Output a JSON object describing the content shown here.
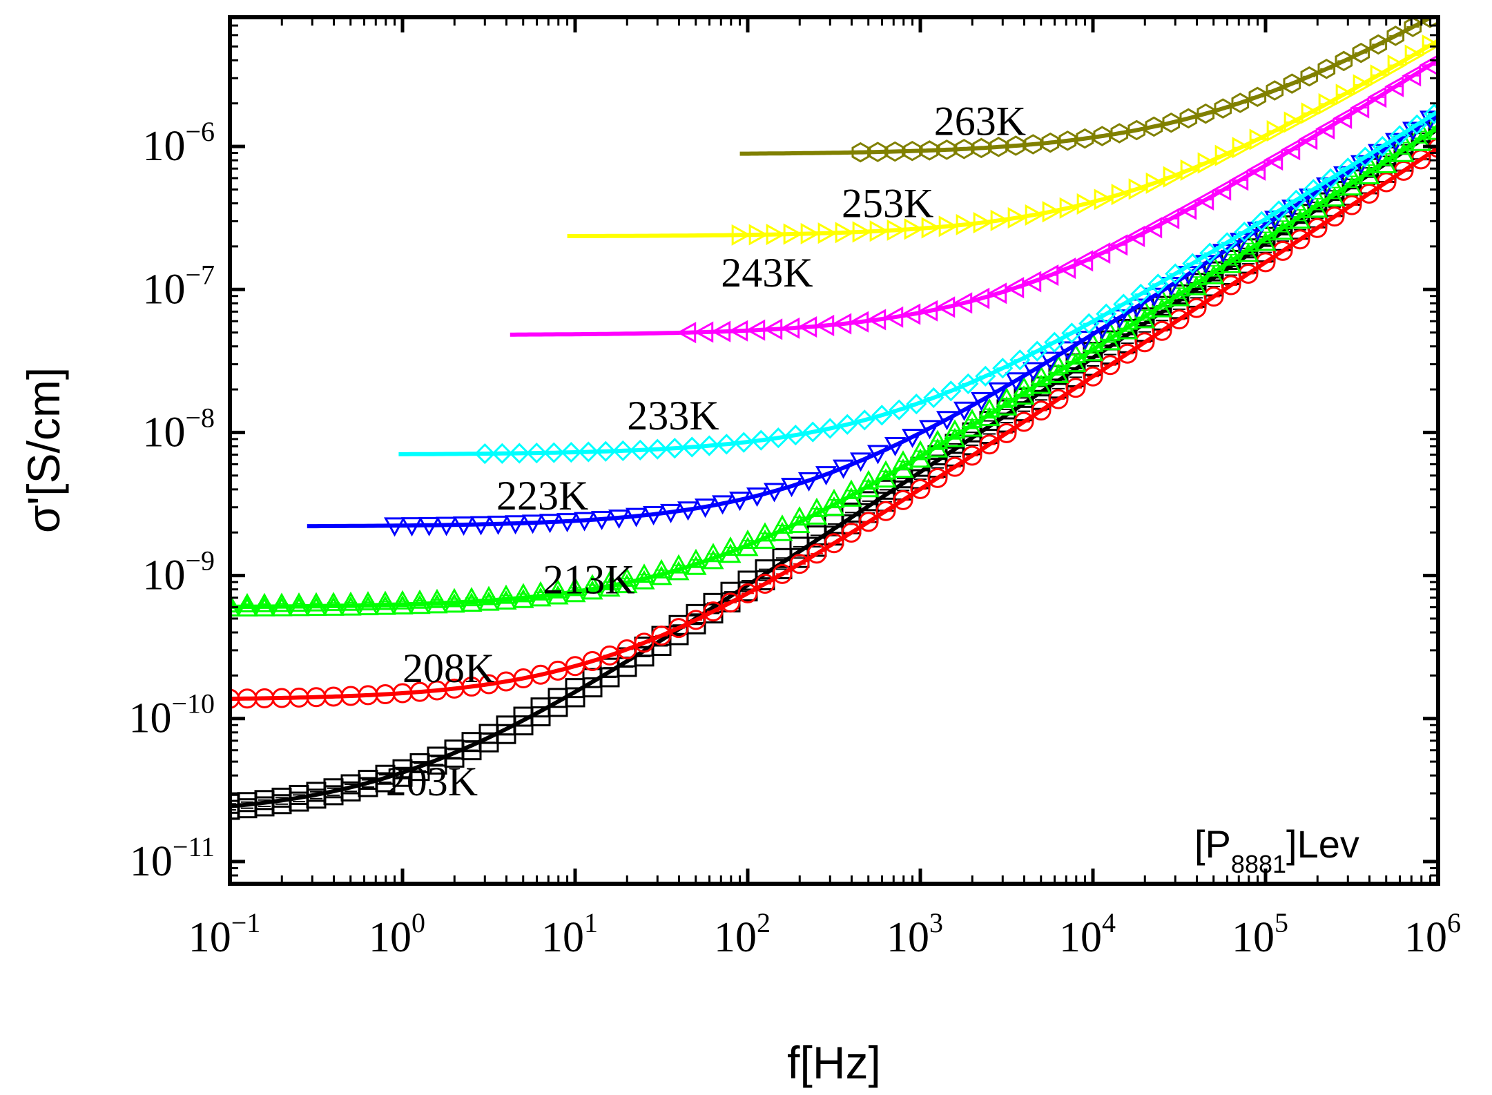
{
  "chart_data": {
    "type": "scatter",
    "title": "",
    "xlabel": "f[Hz]",
    "ylabel": "σ'[S/cm]",
    "xscale": "log",
    "yscale": "log",
    "xlim": [
      0.1,
      1000000
    ],
    "ylim": [
      7e-12,
      8e-06
    ],
    "x_ticks": [
      {
        "value": 0.1,
        "base": "10",
        "exp": "−1"
      },
      {
        "value": 1,
        "base": "10",
        "exp": "0"
      },
      {
        "value": 10,
        "base": "10",
        "exp": "1"
      },
      {
        "value": 100,
        "base": "10",
        "exp": "2"
      },
      {
        "value": 1000,
        "base": "10",
        "exp": "3"
      },
      {
        "value": 10000,
        "base": "10",
        "exp": "4"
      },
      {
        "value": 100000,
        "base": "10",
        "exp": "5"
      },
      {
        "value": 1000000,
        "base": "10",
        "exp": "6"
      }
    ],
    "y_ticks": [
      {
        "value": 1e-11,
        "base": "10",
        "exp": "−11"
      },
      {
        "value": 1e-10,
        "base": "10",
        "exp": "−10"
      },
      {
        "value": 1e-09,
        "base": "10",
        "exp": "−9"
      },
      {
        "value": 1e-08,
        "base": "10",
        "exp": "−8"
      },
      {
        "value": 1e-07,
        "base": "10",
        "exp": "−7"
      },
      {
        "value": 1e-06,
        "base": "10",
        "exp": "−6"
      }
    ],
    "annotation": {
      "prefix": "[P",
      "subscript": "8881",
      "suffix": "]Lev"
    },
    "series": [
      {
        "name": "203K",
        "color": "#000000",
        "marker": "square",
        "sigma0": 2.1e-11,
        "fc": 1.0,
        "n": 0.8,
        "fit_fmin": 0.1,
        "data_fmin": 0.1,
        "data_fmax": 1000000,
        "offsets": [
          0.05,
          -0.07
        ],
        "label_pos": {
          "f": 0.8,
          "sigma": 2.9e-11
        }
      },
      {
        "name": "208K",
        "color": "#ff0000",
        "marker": "circle",
        "sigma0": 1.35e-10,
        "fc": 15,
        "n": 0.8,
        "fit_fmin": 0.1,
        "data_fmin": 0.1,
        "data_fmax": 1000000,
        "offsets": [
          0.0
        ],
        "label_pos": {
          "f": 1.0,
          "sigma": 1.8e-10
        }
      },
      {
        "name": "213K",
        "color": "#00ff00",
        "marker": "triangle-up",
        "sigma0": 6e-10,
        "fc": 50,
        "n": 0.78,
        "fit_fmin": 0.1,
        "data_fmin": 0.1,
        "data_fmax": 1000000,
        "offsets": [
          0.05,
          -0.03
        ],
        "label_pos": {
          "f": 6.5,
          "sigma": 7.5e-10
        }
      },
      {
        "name": "223K",
        "color": "#0000ff",
        "marker": "triangle-down",
        "sigma0": 2.2e-09,
        "fc": 200,
        "n": 0.78,
        "fit_fmin": 0.28,
        "data_fmin": 0.9,
        "data_fmax": 1000000,
        "offsets": [
          0.0
        ],
        "label_pos": {
          "f": 3.5,
          "sigma": 2.9e-09
        }
      },
      {
        "name": "233K",
        "color": "#00ffff",
        "marker": "diamond",
        "sigma0": 7e-09,
        "fc": 700,
        "n": 0.76,
        "fit_fmin": 0.95,
        "data_fmin": 3.0,
        "data_fmax": 1000000,
        "offsets": [
          0.0
        ],
        "label_pos": {
          "f": 20,
          "sigma": 1.05e-08
        }
      },
      {
        "name": "243K",
        "color": "#ff00ff",
        "marker": "triangle-left",
        "sigma0": 4.8e-08,
        "fc": 3000,
        "n": 0.76,
        "fit_fmin": 4.2,
        "data_fmin": 45,
        "data_fmax": 1000000,
        "offsets": [
          0.0
        ],
        "label_pos": {
          "f": 70,
          "sigma": 1.05e-07
        }
      },
      {
        "name": "253K",
        "color": "#ffff00",
        "marker": "triangle-right",
        "sigma0": 2.35e-07,
        "fc": 15000,
        "n": 0.74,
        "fit_fmin": 9,
        "data_fmin": 90,
        "data_fmax": 1000000,
        "offsets": [
          0.0
        ],
        "label_pos": {
          "f": 350,
          "sigma": 3.2e-07
        }
      },
      {
        "name": "263K",
        "color": "#808000",
        "marker": "hexagon",
        "sigma0": 8.8e-07,
        "fc": 50000,
        "n": 0.72,
        "fit_fmin": 90,
        "data_fmin": 450,
        "data_fmax": 1000000,
        "offsets": [
          0.0
        ],
        "label_pos": {
          "f": 1200,
          "sigma": 1.2e-06
        }
      }
    ]
  }
}
